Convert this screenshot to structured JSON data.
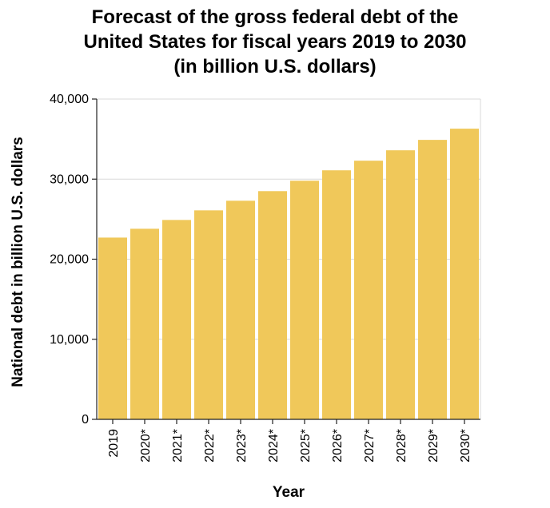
{
  "chart_data": {
    "type": "bar",
    "title_lines": [
      "Forecast of the gross federal debt of the",
      "United States for fiscal years 2019 to 2030",
      "(in billion U.S. dollars)"
    ],
    "xlabel": "Year",
    "ylabel": "National debt in billion U.S. dollars",
    "categories": [
      "2019",
      "2020*",
      "2021*",
      "2022*",
      "2023*",
      "2024*",
      "2025*",
      "2026*",
      "2027*",
      "2028*",
      "2029*",
      "2030*"
    ],
    "values": [
      22700,
      23800,
      24900,
      26100,
      27300,
      28500,
      29800,
      31100,
      32300,
      33600,
      34900,
      36300
    ],
    "ylim": [
      0,
      40000
    ],
    "yticks": [
      0,
      10000,
      20000,
      30000,
      40000
    ],
    "ytick_labels": [
      "0",
      "10,000",
      "20,000",
      "30,000",
      "40,000"
    ],
    "grid": true,
    "bar_color": "#f0c85a",
    "grid_color": "#d9d9d9"
  }
}
